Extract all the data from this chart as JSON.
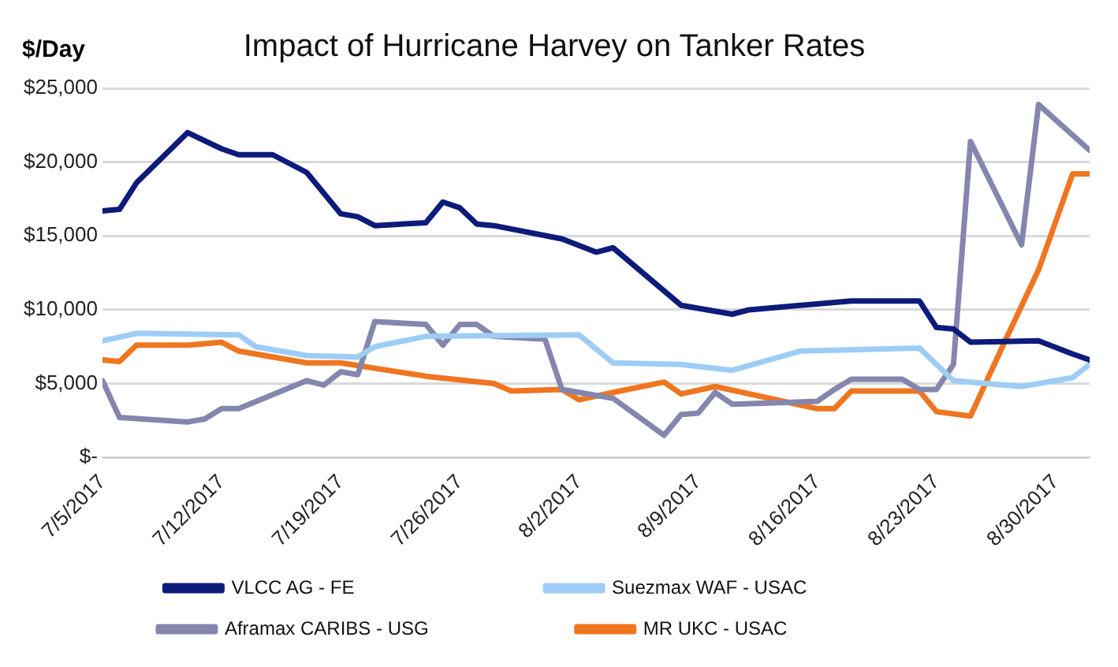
{
  "chart_data": {
    "type": "line",
    "title": "Impact of Hurricane Harvey on Tanker Rates",
    "ylabel": "$/Day",
    "xlim": [
      "2017-07-05",
      "2017-09-01"
    ],
    "xticks": [
      {
        "value": "2017-07-05",
        "label": "7/5/2017"
      },
      {
        "value": "2017-07-12",
        "label": "7/12/2017"
      },
      {
        "value": "2017-07-19",
        "label": "7/19/2017"
      },
      {
        "value": "2017-07-26",
        "label": "7/26/2017"
      },
      {
        "value": "2017-08-02",
        "label": "8/2/2017"
      },
      {
        "value": "2017-08-09",
        "label": "8/9/2017"
      },
      {
        "value": "2017-08-16",
        "label": "8/16/2017"
      },
      {
        "value": "2017-08-23",
        "label": "8/23/2017"
      },
      {
        "value": "2017-08-30",
        "label": "8/30/2017"
      }
    ],
    "ylim": [
      0,
      25000
    ],
    "yticks": [
      {
        "value": 0,
        "label": "$-"
      },
      {
        "value": 5000,
        "label": "$5,000"
      },
      {
        "value": 10000,
        "label": "$10,000"
      },
      {
        "value": 15000,
        "label": "$15,000"
      },
      {
        "value": 20000,
        "label": "$20,000"
      },
      {
        "value": 25000,
        "label": "$25,000"
      }
    ],
    "grid": "y",
    "legend": "bottom",
    "marker": "none",
    "line_style": "solid",
    "series": [
      {
        "name": "VLCC AG - FE",
        "color": "#0d1b7a",
        "x": [
          "2017-07-05",
          "2017-07-06",
          "2017-07-07",
          "2017-07-10",
          "2017-07-12",
          "2017-07-13",
          "2017-07-15",
          "2017-07-17",
          "2017-07-19",
          "2017-07-20",
          "2017-07-21",
          "2017-07-24",
          "2017-07-25",
          "2017-07-26",
          "2017-07-27",
          "2017-07-28",
          "2017-08-01",
          "2017-08-03",
          "2017-08-04",
          "2017-08-08",
          "2017-08-11",
          "2017-08-12",
          "2017-08-18",
          "2017-08-22",
          "2017-08-23",
          "2017-08-24",
          "2017-08-25",
          "2017-08-29",
          "2017-08-31",
          "2017-09-01"
        ],
        "values": [
          16700,
          16800,
          18600,
          22000,
          20900,
          20500,
          20500,
          19300,
          16500,
          16300,
          15700,
          15900,
          17300,
          16900,
          15800,
          15700,
          14800,
          13900,
          14200,
          10300,
          9700,
          10000,
          10600,
          10600,
          8800,
          8700,
          7800,
          7900,
          7000,
          6600
        ]
      },
      {
        "name": "Suezmax WAF - USAC",
        "color": "#9dcdf5",
        "x": [
          "2017-07-05",
          "2017-07-07",
          "2017-07-13",
          "2017-07-14",
          "2017-07-17",
          "2017-07-20",
          "2017-07-21",
          "2017-07-24",
          "2017-08-02",
          "2017-08-04",
          "2017-08-08",
          "2017-08-11",
          "2017-08-15",
          "2017-08-22",
          "2017-08-24",
          "2017-08-28",
          "2017-08-31",
          "2017-09-01"
        ],
        "values": [
          7900,
          8400,
          8300,
          7500,
          6900,
          6800,
          7500,
          8200,
          8300,
          6400,
          6300,
          5900,
          7200,
          7400,
          5200,
          4800,
          5400,
          6300
        ]
      },
      {
        "name": "Aframax CARIBS - USG",
        "color": "#8486ae",
        "x": [
          "2017-07-05",
          "2017-07-06",
          "2017-07-10",
          "2017-07-11",
          "2017-07-12",
          "2017-07-13",
          "2017-07-17",
          "2017-07-18",
          "2017-07-19",
          "2017-07-20",
          "2017-07-21",
          "2017-07-24",
          "2017-07-25",
          "2017-07-26",
          "2017-07-27",
          "2017-07-28",
          "2017-07-31",
          "2017-08-01",
          "2017-08-04",
          "2017-08-07",
          "2017-08-08",
          "2017-08-09",
          "2017-08-10",
          "2017-08-11",
          "2017-08-16",
          "2017-08-17",
          "2017-08-18",
          "2017-08-21",
          "2017-08-22",
          "2017-08-23",
          "2017-08-24",
          "2017-08-25",
          "2017-08-28",
          "2017-08-29",
          "2017-09-01"
        ],
        "values": [
          5200,
          2700,
          2400,
          2600,
          3300,
          3300,
          5200,
          4900,
          5800,
          5600,
          9200,
          9000,
          7600,
          9000,
          9000,
          8200,
          8000,
          4600,
          4000,
          1500,
          2900,
          3000,
          4400,
          3600,
          3800,
          4600,
          5300,
          5300,
          4600,
          4600,
          6300,
          21400,
          14400,
          23900,
          20800
        ]
      },
      {
        "name": "MR UKC - USAC",
        "color": "#f07520",
        "x": [
          "2017-07-05",
          "2017-07-06",
          "2017-07-07",
          "2017-07-10",
          "2017-07-12",
          "2017-07-13",
          "2017-07-17",
          "2017-07-19",
          "2017-07-24",
          "2017-07-28",
          "2017-07-29",
          "2017-08-01",
          "2017-08-02",
          "2017-08-04",
          "2017-08-07",
          "2017-08-08",
          "2017-08-10",
          "2017-08-16",
          "2017-08-17",
          "2017-08-18",
          "2017-08-22",
          "2017-08-23",
          "2017-08-25",
          "2017-08-27",
          "2017-08-29",
          "2017-08-31",
          "2017-09-01"
        ],
        "values": [
          6600,
          6500,
          7600,
          7600,
          7800,
          7200,
          6400,
          6400,
          5500,
          5000,
          4500,
          4600,
          3900,
          4400,
          5100,
          4300,
          4800,
          3300,
          3300,
          4500,
          4500,
          3100,
          2800,
          7800,
          12700,
          19200,
          19200
        ]
      }
    ]
  }
}
